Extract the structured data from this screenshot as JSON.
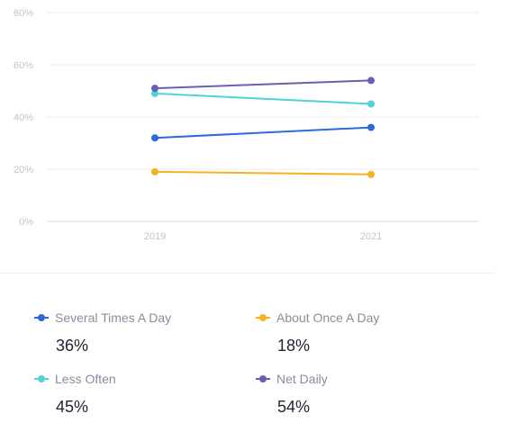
{
  "chart_data": {
    "type": "line",
    "x": [
      "2019",
      "2021"
    ],
    "ylim": [
      0,
      80
    ],
    "y_ticks": [
      0,
      20,
      40,
      60,
      80
    ],
    "y_tick_labels": [
      "0%",
      "20%",
      "40%",
      "60%",
      "80%"
    ],
    "grid": true,
    "legend_position": "bottom",
    "series": [
      {
        "name": "Several Times A Day",
        "values": [
          32,
          36
        ],
        "color": "#2a6bd8",
        "summary": "36%"
      },
      {
        "name": "About Once A Day",
        "values": [
          19,
          18
        ],
        "color": "#f5b324",
        "summary": "18%"
      },
      {
        "name": "Less Often",
        "values": [
          49,
          45
        ],
        "color": "#50d2d6",
        "summary": "45%"
      },
      {
        "name": "Net Daily",
        "values": [
          51,
          54
        ],
        "color": "#6a5fb3",
        "summary": "54%"
      }
    ]
  }
}
